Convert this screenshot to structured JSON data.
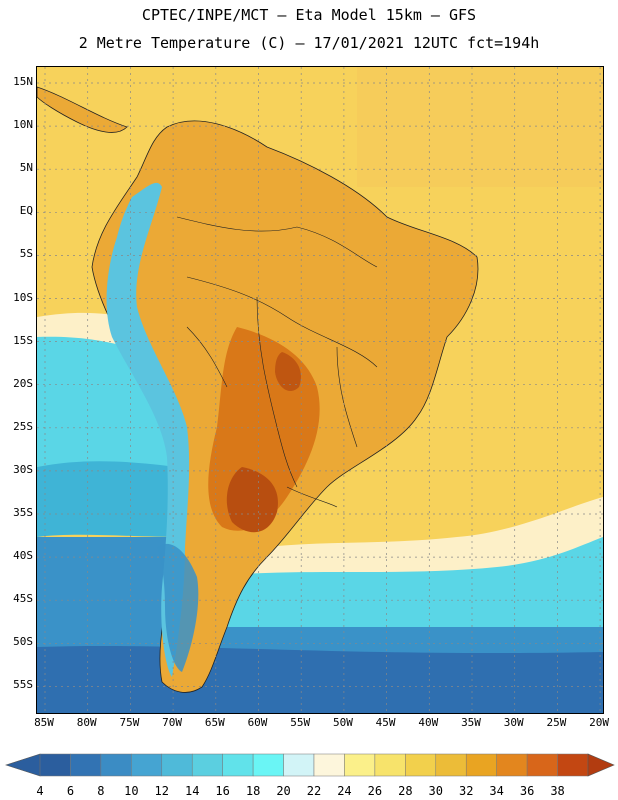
{
  "header": {
    "title_line1": "CPTEC/INPE/MCT —  Eta Model 15km — GFS",
    "title_line2": "2 Metre Temperature (C) — 17/01/2021 12UTC fct=194h"
  },
  "map": {
    "lat_labels": [
      "15N",
      "10N",
      "5N",
      "EQ",
      "5S",
      "10S",
      "15S",
      "20S",
      "25S",
      "30S",
      "35S",
      "40S",
      "45S",
      "50S",
      "55S"
    ],
    "lon_labels": [
      "85W",
      "80W",
      "75W",
      "70W",
      "65W",
      "60W",
      "55W",
      "50W",
      "45W",
      "40W",
      "35W",
      "30W",
      "25W",
      "20W"
    ],
    "colors": {
      "ocean_tropical": "#f7d25b",
      "warm_land": "#eba936",
      "hot_land": "#d97818",
      "hottest": "#b84e10",
      "andes_cold": "#5bc4df",
      "andes_cool": "#a8e6f0",
      "south_ocean_1": "#5ad6e6",
      "south_ocean_2": "#3fb4d6",
      "south_ocean_3": "#3a92c8",
      "south_ocean_4": "#2f6fb0",
      "pale_band": "#fdf0c8"
    }
  },
  "legend": {
    "labels": [
      "4",
      "6",
      "8",
      "10",
      "12",
      "14",
      "16",
      "18",
      "20",
      "22",
      "24",
      "26",
      "28",
      "30",
      "32",
      "34",
      "36",
      "38"
    ],
    "colors": [
      "#2b5e9e",
      "#3273b3",
      "#3b8cc4",
      "#45a4d2",
      "#4fbad9",
      "#5bcfe0",
      "#61e2ea",
      "#6af5f5",
      "#d2f4f7",
      "#fdf6dc",
      "#fbf08a",
      "#f7e36b",
      "#f2d04c",
      "#ecbc38",
      "#e9a422",
      "#e3861e",
      "#d8661a",
      "#c34712"
    ],
    "left_arrow_color": "#2b5e9e",
    "right_arrow_color": "#b23c10"
  }
}
